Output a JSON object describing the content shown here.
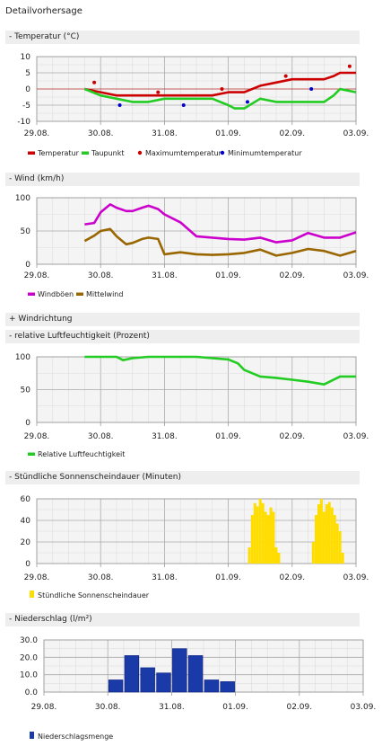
{
  "page_title": "Detailvorhersage",
  "sections": {
    "temperature": "- Temperatur (°C)",
    "wind": "- Wind (km/h)",
    "winddir": "+ Windrichtung",
    "humidity": "- relative Luftfeuchtigkeit (Prozent)",
    "sun": "- Stündliche Sonnenscheindauer (Minuten)",
    "precip": "- Niederschlag (l/m²)"
  },
  "x_ticks": [
    "29.08.",
    "30.08.",
    "31.08.",
    "01.09.",
    "02.09.",
    "03.09."
  ],
  "colors": {
    "temperature": "#cc0000",
    "dewpoint": "#22cc22",
    "max_temp": "#cc0000",
    "min_temp": "#0000cc",
    "gusts": "#cc00cc",
    "mean_wind": "#996600",
    "humidity": "#22cc22",
    "sunshine": "#ffdd00",
    "precipitation": "#1a3aa8"
  },
  "chart_data": [
    {
      "type": "line",
      "id": "temperature",
      "ylim": [
        -10,
        10
      ],
      "y_ticks": [
        "10",
        "5",
        "0",
        "-5",
        "-10"
      ],
      "series": [
        {
          "name": "Temperatur",
          "kind": "line",
          "x": [
            0.75,
            1.0,
            1.25,
            1.5,
            1.75,
            2.0,
            2.25,
            2.5,
            2.75,
            3.0,
            3.1,
            3.25,
            3.5,
            3.75,
            4.0,
            4.25,
            4.5,
            4.65,
            4.75,
            5.0
          ],
          "y": [
            0,
            -1,
            -2,
            -2,
            -2,
            -2,
            -2,
            -2,
            -2,
            -1,
            -1,
            -1,
            1,
            2,
            3,
            3,
            3,
            4,
            5,
            5
          ]
        },
        {
          "name": "Taupunkt",
          "kind": "line",
          "x": [
            0.75,
            1.0,
            1.25,
            1.5,
            1.75,
            2.0,
            2.25,
            2.5,
            2.75,
            3.0,
            3.1,
            3.25,
            3.5,
            3.75,
            4.0,
            4.25,
            4.5,
            4.65,
            4.75,
            5.0
          ],
          "y": [
            0,
            -2,
            -3,
            -4,
            -4,
            -3,
            -3,
            -3,
            -3,
            -5,
            -6,
            -6,
            -3,
            -4,
            -4,
            -4,
            -4,
            -2,
            0,
            -1
          ]
        },
        {
          "name": "Maximumtemperatur",
          "kind": "points",
          "x": [
            0.9,
            1.9,
            2.9,
            3.9,
            4.9
          ],
          "y": [
            2,
            -1,
            0,
            4,
            7
          ]
        },
        {
          "name": "Minimumtemperatur",
          "kind": "points",
          "x": [
            1.3,
            2.3,
            3.3,
            4.3
          ],
          "y": [
            -5,
            -5,
            -4,
            0
          ]
        }
      ],
      "legend": [
        "Temperatur",
        "Taupunkt",
        "Maximumtemperatur",
        "Minimumtemperatur"
      ]
    },
    {
      "type": "line",
      "id": "wind",
      "ylim": [
        0,
        100
      ],
      "y_ticks": [
        "100",
        "50",
        "0"
      ],
      "series": [
        {
          "name": "Windböen",
          "kind": "line",
          "x": [
            0.75,
            0.9,
            1.0,
            1.15,
            1.25,
            1.4,
            1.5,
            1.65,
            1.75,
            1.9,
            2.0,
            2.25,
            2.5,
            2.75,
            3.0,
            3.25,
            3.5,
            3.75,
            4.0,
            4.25,
            4.5,
            4.75,
            5.0
          ],
          "y": [
            60,
            62,
            78,
            90,
            85,
            80,
            80,
            85,
            88,
            83,
            75,
            63,
            42,
            40,
            38,
            37,
            40,
            33,
            36,
            47,
            40,
            40,
            48
          ]
        },
        {
          "name": "Mittelwind",
          "kind": "line",
          "x": [
            0.75,
            0.9,
            1.0,
            1.15,
            1.25,
            1.4,
            1.5,
            1.65,
            1.75,
            1.9,
            2.0,
            2.25,
            2.5,
            2.75,
            3.0,
            3.25,
            3.5,
            3.75,
            4.0,
            4.25,
            4.5,
            4.75,
            5.0
          ],
          "y": [
            35,
            43,
            50,
            53,
            42,
            30,
            32,
            38,
            40,
            38,
            15,
            18,
            15,
            14,
            15,
            17,
            22,
            13,
            17,
            23,
            20,
            13,
            20
          ]
        }
      ],
      "legend": [
        "Windböen",
        "Mittelwind"
      ]
    },
    {
      "type": "line",
      "id": "humidity",
      "ylim": [
        0,
        100
      ],
      "y_ticks": [
        "100",
        "50",
        "0"
      ],
      "series": [
        {
          "name": "Relative Luftfeuchtigkeit",
          "kind": "line",
          "x": [
            0.75,
            1.0,
            1.25,
            1.35,
            1.5,
            1.75,
            2.0,
            2.25,
            2.5,
            2.75,
            3.0,
            3.15,
            3.25,
            3.5,
            3.75,
            4.0,
            4.25,
            4.5,
            4.75,
            5.0
          ],
          "y": [
            100,
            100,
            100,
            95,
            98,
            100,
            100,
            100,
            100,
            98,
            96,
            90,
            80,
            70,
            68,
            65,
            62,
            58,
            70,
            70
          ]
        }
      ],
      "legend": [
        "Relative Luftfeuchtigkeit"
      ]
    },
    {
      "type": "bar",
      "id": "sun",
      "ylim": [
        0,
        60
      ],
      "y_ticks": [
        "60",
        "40",
        "20",
        "0"
      ],
      "series": [
        {
          "name": "Stündliche Sonnenscheindauer",
          "x": [
            3.33,
            3.375,
            3.417,
            3.458,
            3.5,
            3.542,
            3.583,
            3.625,
            3.667,
            3.708,
            3.75,
            3.792,
            4.33,
            4.375,
            4.417,
            4.458,
            4.5,
            4.542,
            4.583,
            4.625,
            4.667,
            4.708,
            4.75,
            4.792
          ],
          "values": [
            15,
            45,
            56,
            53,
            60,
            56,
            48,
            45,
            52,
            48,
            15,
            10,
            20,
            45,
            55,
            60,
            48,
            55,
            57,
            52,
            45,
            37,
            30,
            10
          ]
        }
      ],
      "legend": [
        "Stündliche Sonnenscheindauer"
      ]
    },
    {
      "type": "bar",
      "id": "precip",
      "ylim": [
        0,
        30
      ],
      "y_ticks": [
        "30.0",
        "20.0",
        "10.0",
        "0.0"
      ],
      "series": [
        {
          "name": "Niederschlagsmenge",
          "x": [
            1.125,
            1.375,
            1.625,
            1.875,
            2.125,
            2.375,
            2.625,
            2.875
          ],
          "values": [
            7,
            21,
            14,
            11,
            25,
            21,
            7,
            6
          ]
        }
      ],
      "legend": [
        "Niederschlagsmenge"
      ]
    }
  ]
}
